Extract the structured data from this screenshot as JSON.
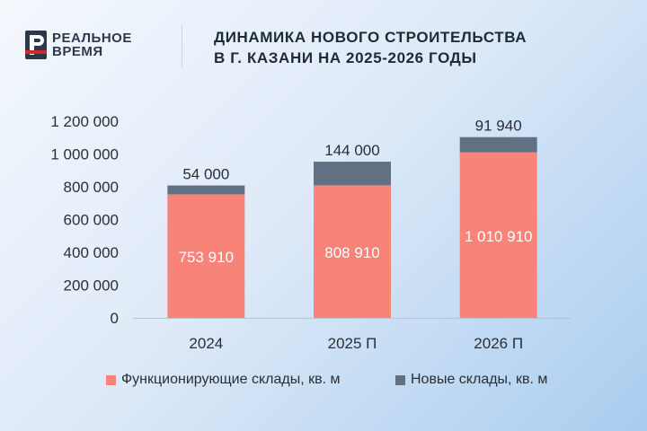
{
  "brand": {
    "line1": "РЕАЛЬНОЕ",
    "line2": "ВРЕМЯ",
    "logo_letter": "Р"
  },
  "title": {
    "line1": "ДИНАМИКА НОВОГО СТРОИТЕЛЬСТВА",
    "line2": "В Г. КАЗАНИ НА 2025-2026 ГОДЫ"
  },
  "colors": {
    "functioning": "#f88379",
    "new": "#617183",
    "brand_red": "#d8262e",
    "brand_dark": "#2b3a4a"
  },
  "chart_data": {
    "type": "bar",
    "stacked": true,
    "categories": [
      "2024",
      "2025 П",
      "2026 П"
    ],
    "series": [
      {
        "name": "Функционирующие склады, кв. м",
        "values": [
          753910,
          808910,
          1010910
        ],
        "value_labels": [
          "753 910",
          "808 910",
          "1 010 910"
        ]
      },
      {
        "name": "Новые склады, кв. м",
        "values": [
          54000,
          144000,
          91940
        ],
        "value_labels": [
          "54 000",
          "144 000",
          "91 940"
        ]
      }
    ],
    "ylim": [
      0,
      1200000
    ],
    "yticks": [
      0,
      200000,
      400000,
      600000,
      800000,
      1000000,
      1200000
    ],
    "ytick_labels": [
      "0",
      "200 000",
      "400 000",
      "600 000",
      "800 000",
      "1 000 000",
      "1 200 000"
    ],
    "grid": false,
    "legend_position": "bottom"
  }
}
